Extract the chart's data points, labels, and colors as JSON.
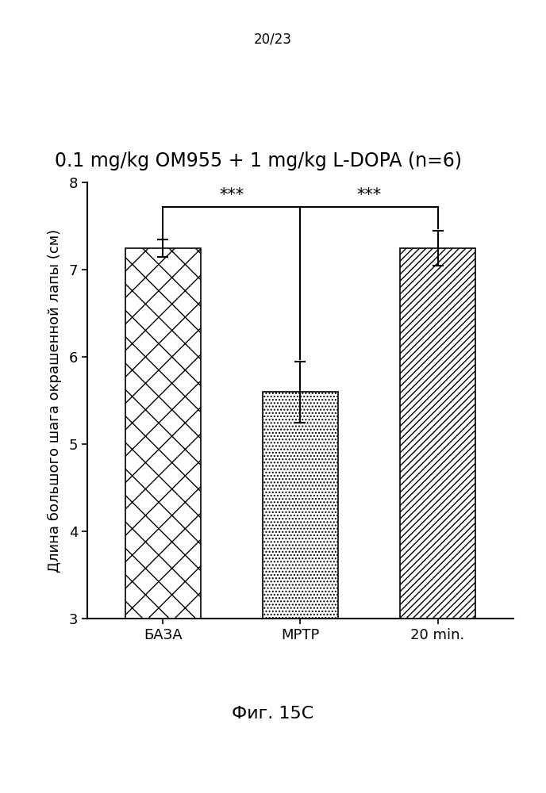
{
  "title": "0.1 mg/kg OM955 + 1 mg/kg L-DOPA (n=6)",
  "ylabel": "Длина большого шага окрашенной лапы (см)",
  "categories": [
    "БАЗА",
    "МРТР",
    "20 min."
  ],
  "values": [
    7.25,
    5.6,
    7.25
  ],
  "errors": [
    0.1,
    0.35,
    0.2
  ],
  "ylim": [
    3,
    8
  ],
  "yticks": [
    3,
    4,
    5,
    6,
    7,
    8
  ],
  "bar_width": 0.55,
  "caption": "Фиг. 15С",
  "page_label": "20/23",
  "background_color": "#ffffff",
  "bar_edge_color": "#000000",
  "title_fontsize": 17,
  "axis_fontsize": 13,
  "tick_fontsize": 13,
  "caption_fontsize": 16
}
